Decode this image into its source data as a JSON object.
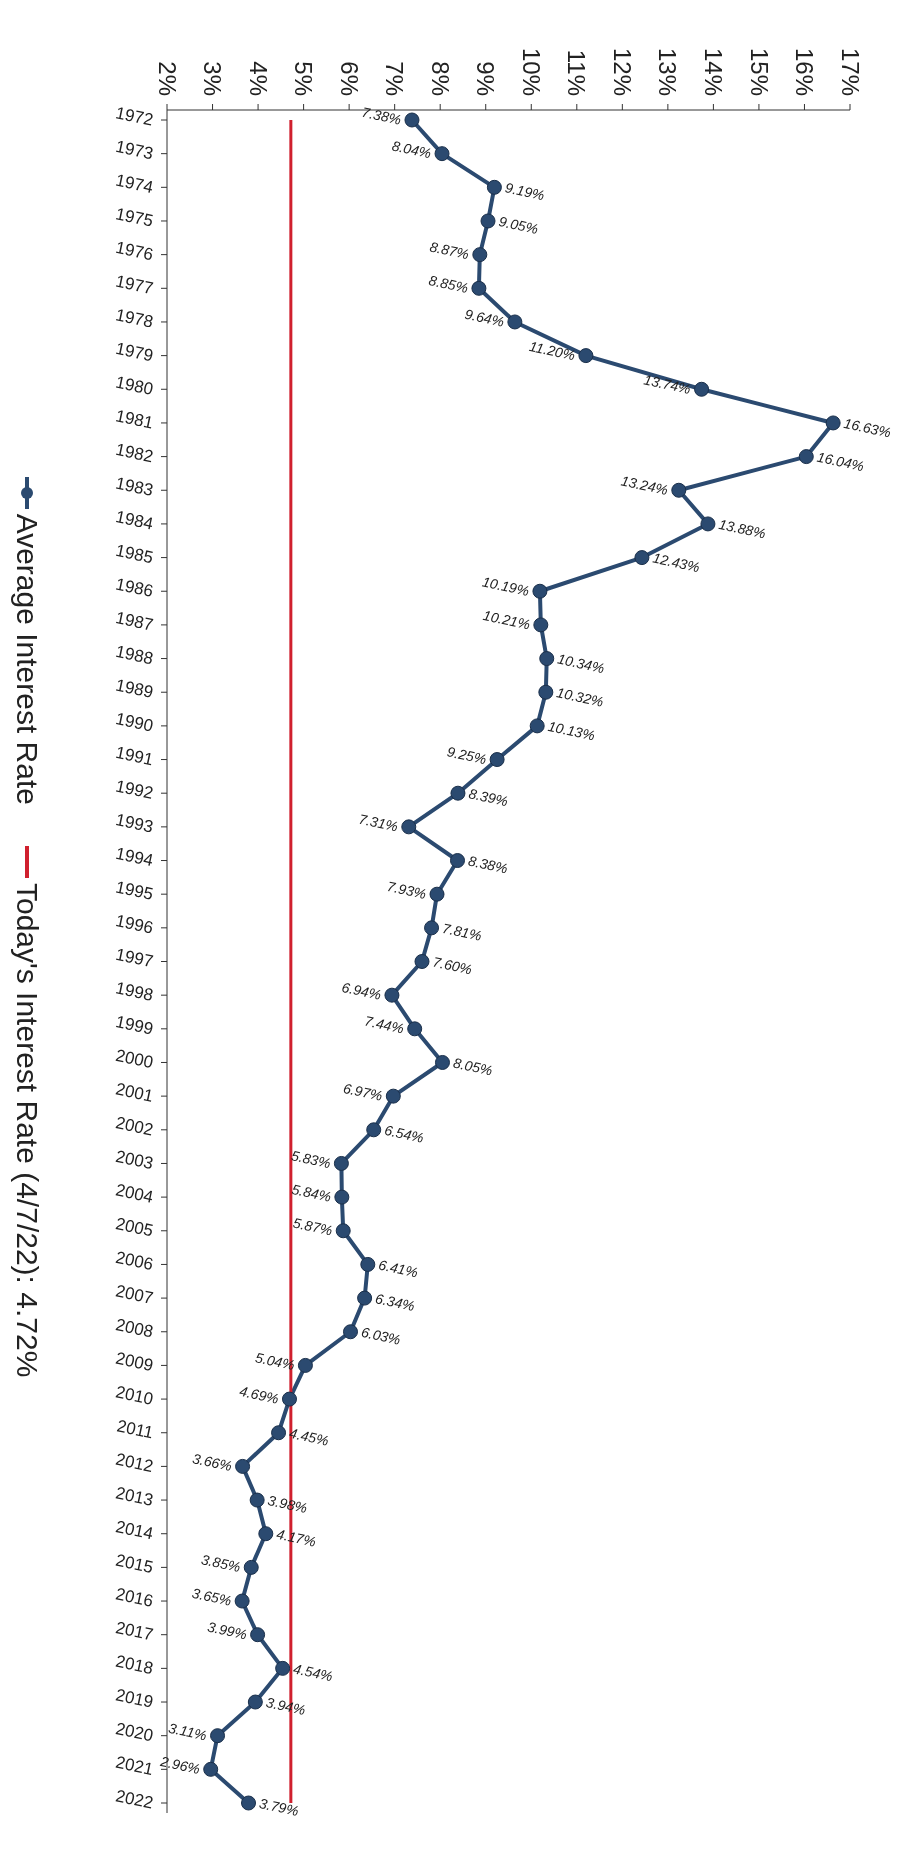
{
  "chart_data": {
    "type": "line",
    "orientation": "horizontal",
    "categories": [
      "1972",
      "1973",
      "1974",
      "1975",
      "1976",
      "1977",
      "1978",
      "1979",
      "1980",
      "1981",
      "1982",
      "1983",
      "1984",
      "1985",
      "1986",
      "1987",
      "1988",
      "1989",
      "1990",
      "1991",
      "1992",
      "1993",
      "1994",
      "1995",
      "1996",
      "1997",
      "1998",
      "1999",
      "2000",
      "2001",
      "2002",
      "2003",
      "2004",
      "2005",
      "2006",
      "2007",
      "2008",
      "2009",
      "2010",
      "2011",
      "2012",
      "2013",
      "2014",
      "2015",
      "2016",
      "2017",
      "2018",
      "2019",
      "2020",
      "2021",
      "2022"
    ],
    "series": [
      {
        "name": "Average Interest Rate",
        "color": "#2b4a70",
        "marker": "circle",
        "values": [
          7.38,
          8.04,
          9.19,
          9.05,
          8.87,
          8.85,
          9.64,
          11.2,
          13.74,
          16.63,
          16.04,
          13.24,
          13.88,
          12.43,
          10.19,
          10.21,
          10.34,
          10.32,
          10.13,
          9.25,
          8.39,
          7.31,
          8.38,
          7.93,
          7.81,
          7.6,
          6.94,
          7.44,
          8.05,
          6.97,
          6.54,
          5.83,
          5.84,
          5.87,
          6.41,
          6.34,
          6.03,
          5.04,
          4.69,
          4.45,
          3.66,
          3.98,
          4.17,
          3.85,
          3.65,
          3.99,
          4.54,
          3.94,
          3.11,
          2.96,
          3.79
        ],
        "value_labels": [
          "7.38%",
          "8.04%",
          "9.19%",
          "9.05%",
          "8.87%",
          "8.85%",
          "9.64%",
          "11.20%",
          "13.74%",
          "16.63%",
          "16.04%",
          "13.24%",
          "13.88%",
          "12.43%",
          "10.19%",
          "10.21%",
          "10.34%",
          "10.32%",
          "10.13%",
          "9.25%",
          "8.39%",
          "7.31%",
          "8.38%",
          "7.93%",
          "7.81%",
          "7.60%",
          "6.94%",
          "7.44%",
          "8.05%",
          "6.97%",
          "6.54%",
          "5.83%",
          "5.84%",
          "5.87%",
          "6.41%",
          "6.34%",
          "6.03%",
          "5.04%",
          "4.69%",
          "4.45%",
          "3.66%",
          "3.98%",
          "4.17%",
          "3.85%",
          "3.65%",
          "3.99%",
          "4.54%",
          "3.94%",
          "3.11%",
          "2.96%",
          "3.79%"
        ]
      },
      {
        "name": "Today's Interest Rate (4/7/22):  4.72%",
        "color": "#d0202e",
        "marker": "none",
        "values": [
          4.72,
          4.72,
          4.72,
          4.72,
          4.72,
          4.72,
          4.72,
          4.72,
          4.72,
          4.72,
          4.72,
          4.72,
          4.72,
          4.72,
          4.72,
          4.72,
          4.72,
          4.72,
          4.72,
          4.72,
          4.72,
          4.72,
          4.72,
          4.72,
          4.72,
          4.72,
          4.72,
          4.72,
          4.72,
          4.72,
          4.72,
          4.72,
          4.72,
          4.72,
          4.72,
          4.72,
          4.72,
          4.72,
          4.72,
          4.72,
          4.72,
          4.72,
          4.72,
          4.72,
          4.72,
          4.72,
          4.72,
          4.72,
          4.72,
          4.72,
          4.72
        ]
      }
    ],
    "xlim": [
      2,
      17
    ],
    "xticks": [
      {
        "value": 2,
        "label": "2%"
      },
      {
        "value": 3,
        "label": "3%"
      },
      {
        "value": 4,
        "label": "4%"
      },
      {
        "value": 5,
        "label": "5%"
      },
      {
        "value": 6,
        "label": "6%"
      },
      {
        "value": 7,
        "label": "7%"
      },
      {
        "value": 8,
        "label": "8%"
      },
      {
        "value": 9,
        "label": "9%"
      },
      {
        "value": 10,
        "label": "10%"
      },
      {
        "value": 11,
        "label": "11%"
      },
      {
        "value": 12,
        "label": "12%"
      },
      {
        "value": 13,
        "label": "13%"
      },
      {
        "value": 14,
        "label": "14%"
      },
      {
        "value": 15,
        "label": "15%"
      },
      {
        "value": 16,
        "label": "16%"
      },
      {
        "value": 17,
        "label": "17%"
      }
    ],
    "legend": "left",
    "line_style": "solid"
  }
}
